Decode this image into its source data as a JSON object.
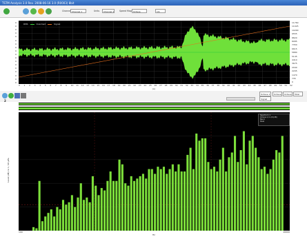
{
  "window": {
    "title": "TSTM Analysis 3.0   Rev. 2008-06-16 3.0  (R0003) 8bit"
  },
  "toolbar": {
    "channel_label": "Channel",
    "channel_value": "Channel 1",
    "units_label": "Units",
    "units_value": "Channel 1",
    "speed_label": "Speed Map",
    "speed_value": "Octave",
    "scale_value": "1/1",
    "icons": [
      "green-gear-icon",
      "zoom-icon",
      "refresh-icon",
      "record-icon",
      "drop-icon"
    ]
  },
  "waveform": {
    "legend": [
      "RMS",
      "Overload",
      "Signal"
    ],
    "y_tick_labels": [
      "0",
      "0",
      "0",
      "0",
      "0",
      "0",
      "0",
      "0",
      "0",
      "0",
      "0",
      "0",
      "0",
      "0",
      "0",
      "0",
      "0",
      "0"
    ],
    "right_tick_labels": [
      "11760",
      "11025",
      "10290",
      "9555",
      "8820",
      "8085",
      "7350",
      "6615",
      "5880",
      "5145",
      "4410",
      "3675",
      "2940",
      "2205",
      "1470",
      "735",
      "0"
    ],
    "x_tick_count": 53,
    "x_label": "(s)"
  },
  "midbar": {
    "icons": [
      "zoom-in-icon",
      "green-circle-icon",
      "play-icon",
      "stop-icon"
    ],
    "box1": "Octave 1",
    "box1b": "Signal",
    "box2": "Octave",
    "box3": "Octave",
    "box4": "Total",
    "spec_number": "2"
  },
  "spectrum": {
    "legend_title": "Spectrum 1",
    "legend_rows": [
      "Octave   1/1   2/1(dB)",
      "Band",
      "Peak"
    ],
    "y_label": "Level (dB) re 1 / 20 µPa",
    "x_label": "Hz",
    "x_start_label": "100",
    "x_end_label": "20000"
  },
  "chart_data": {
    "type": "bar",
    "title": "",
    "xlabel": "Hz",
    "ylabel": "Level (dB) re 1 / 20 µPa",
    "values": [
      3,
      2,
      42,
      8,
      12,
      15,
      18,
      12,
      20,
      18,
      26,
      22,
      24,
      30,
      20,
      28,
      40,
      26,
      28,
      24,
      46,
      38,
      30,
      36,
      34,
      42,
      50,
      42,
      42,
      60,
      56,
      40,
      38,
      46,
      42,
      44,
      46,
      48,
      44,
      52,
      52,
      48,
      54,
      52,
      54,
      48,
      52,
      56,
      50,
      56,
      50,
      50,
      64,
      70,
      52,
      82,
      76,
      78,
      78,
      58,
      52,
      54,
      50,
      60,
      70,
      50,
      62,
      66,
      80,
      58,
      68,
      84,
      56,
      76,
      80,
      70,
      62,
      52,
      54,
      48,
      52,
      60,
      68,
      66,
      80
    ],
    "ylim": [
      0,
      100
    ],
    "bar_color": "#7cdf3a"
  }
}
